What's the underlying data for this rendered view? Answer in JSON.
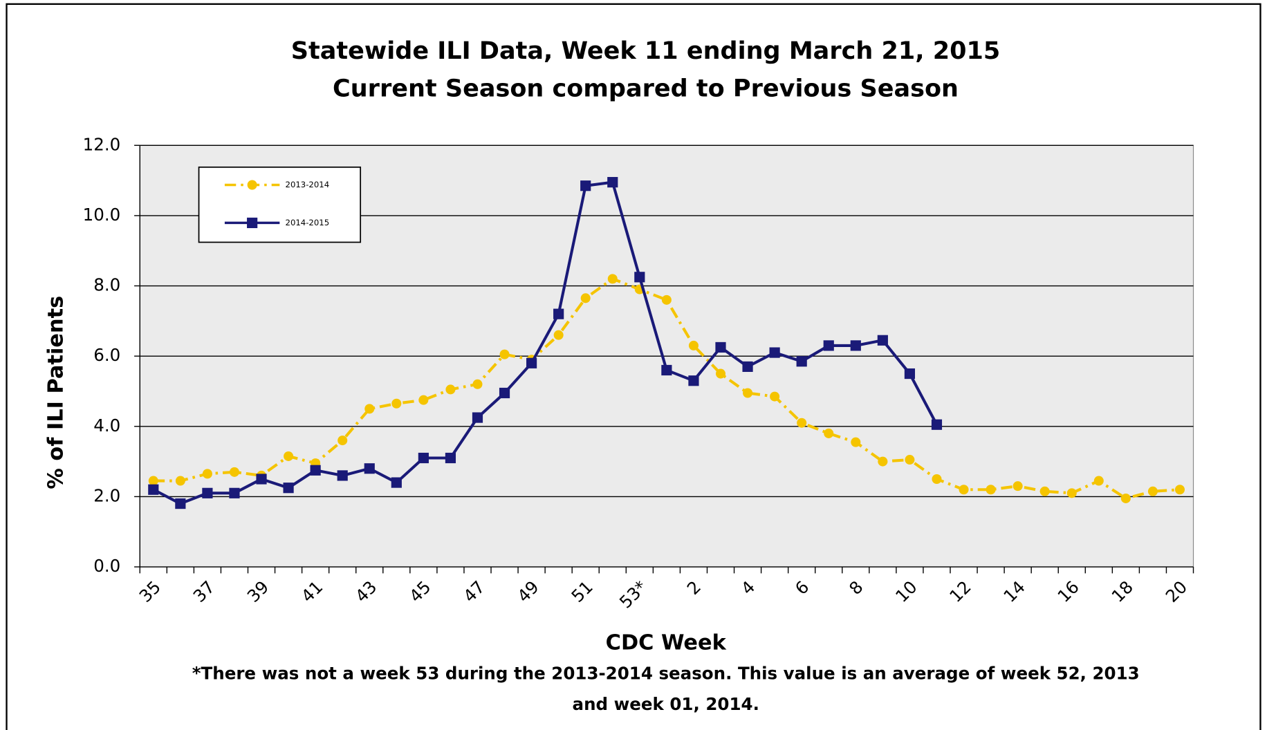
{
  "chart_data": {
    "type": "line",
    "title": "Statewide ILI Data, Week 11 ending March 21, 2015",
    "subtitle": "Current Season compared to Previous Season",
    "x_label": "CDC Week",
    "y_label": "% of ILI Patients",
    "annotation": [
      "*There was not a week 53 during the 2013-2014 season. This value is an average of week 52, 2013",
      "and week 01, 2014."
    ],
    "categories": [
      "35",
      null,
      "37",
      null,
      "39",
      null,
      "41",
      null,
      "43",
      null,
      "45",
      null,
      "47",
      null,
      "49",
      null,
      "51",
      null,
      "53*",
      null,
      "2",
      null,
      "4",
      null,
      "6",
      null,
      "8",
      null,
      "10",
      null,
      "12",
      null,
      "14",
      null,
      "16",
      null,
      "18",
      null,
      "20"
    ],
    "series": [
      {
        "name": "2013-2014",
        "color": "#f5c400",
        "line_style": "dash-dot",
        "marker": "circle",
        "values": [
          2.45,
          2.45,
          2.65,
          2.7,
          2.6,
          3.15,
          2.95,
          3.6,
          4.5,
          4.65,
          4.75,
          5.05,
          5.2,
          6.05,
          5.9,
          6.6,
          7.65,
          8.2,
          7.9,
          7.6,
          6.3,
          5.5,
          4.95,
          4.85,
          4.1,
          3.8,
          3.55,
          3.0,
          3.05,
          2.5,
          2.2,
          2.2,
          2.3,
          2.15,
          2.1,
          2.45,
          1.95,
          2.15,
          2.2
        ]
      },
      {
        "name": "2014-2015",
        "color": "#1a1a78",
        "line_style": "solid",
        "marker": "square",
        "values": [
          2.2,
          1.8,
          2.1,
          2.1,
          2.5,
          2.25,
          2.75,
          2.6,
          2.8,
          2.4,
          3.1,
          3.1,
          4.25,
          4.95,
          5.8,
          7.2,
          10.85,
          10.95,
          8.25,
          5.6,
          5.3,
          6.25,
          5.7,
          6.1,
          5.85,
          6.3,
          6.3,
          6.45,
          5.5,
          4.05,
          null,
          null,
          null,
          null,
          null,
          null,
          null,
          null,
          null
        ]
      }
    ],
    "ylim": [
      0,
      12
    ],
    "yticks": [
      {
        "value": 0,
        "label": "0.0"
      },
      {
        "value": 2,
        "label": "2.0"
      },
      {
        "value": 4,
        "label": "4.0"
      },
      {
        "value": 6,
        "label": "6.0"
      },
      {
        "value": 8,
        "label": "8.0"
      },
      {
        "value": 10,
        "label": "10.0"
      },
      {
        "value": 12,
        "label": "12.0"
      }
    ],
    "grid": true,
    "legend": "upper-left"
  }
}
